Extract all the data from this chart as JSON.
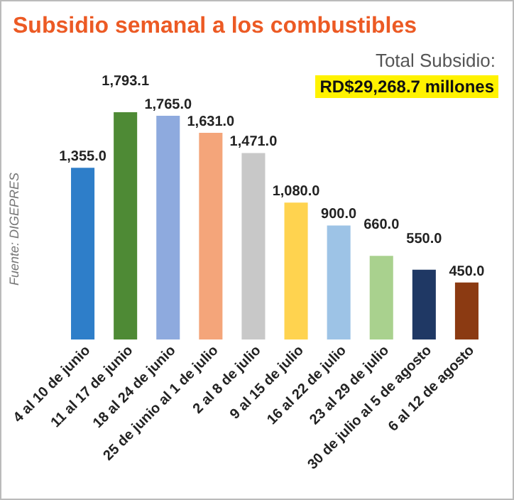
{
  "chart_data": {
    "type": "bar",
    "title": "Subsidio semanal a los combustibles",
    "categories": [
      "4 al 10 de junio",
      "11 al 17 de junio",
      "18 al 24 de junio",
      "25 de junio al 1 de julio",
      "2 al 8 de julio",
      "9 al 15 de julio",
      "16 al 22 de julio",
      "23 al 29 de julio",
      "30 de julio al 5 de agosto",
      "6 al 12 de agosto"
    ],
    "values": [
      1355.0,
      1793.1,
      1765.0,
      1631.0,
      1471.0,
      1080.0,
      900.0,
      660.0,
      550.0,
      450.0
    ],
    "colors": [
      "#2e7ec9",
      "#4e8a35",
      "#8eaade",
      "#f4a57a",
      "#c8c8c8",
      "#ffd34f",
      "#9dc3e6",
      "#a9d18e",
      "#1f3864",
      "#8b3a12"
    ],
    "value_labels": [
      "1,355.0",
      "1,793.1",
      "1,765.0",
      "1,631.0",
      "1,471.0",
      "1,080.0",
      "900.0",
      "660.0",
      "550.0",
      "450.0"
    ],
    "annotations": [
      "Total Subsidio:",
      "RD$29,268.7 millones",
      "Fuente: DIGEPRES"
    ]
  }
}
